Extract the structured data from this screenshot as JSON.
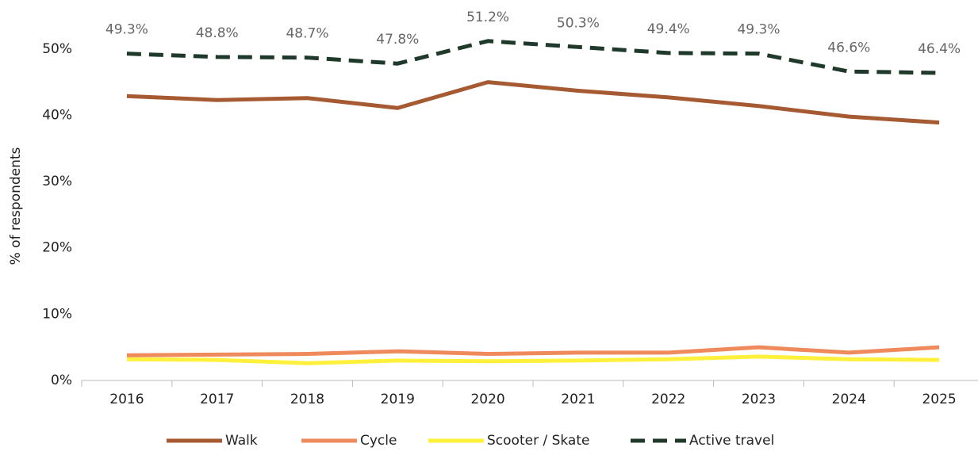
{
  "chart_data": {
    "type": "line",
    "y_label": "% of respondents",
    "categories": [
      "2016",
      "2017",
      "2018",
      "2019",
      "2020",
      "2021",
      "2022",
      "2023",
      "2024",
      "2025"
    ],
    "series": [
      {
        "name": "Walk",
        "color": "#a65a32",
        "values": [
          42.9,
          42.3,
          42.6,
          41.1,
          45.0,
          43.7,
          42.7,
          41.4,
          39.8,
          38.9
        ]
      },
      {
        "name": "Cycle",
        "color": "#ef8a5c",
        "values": [
          3.8,
          3.9,
          4.0,
          4.4,
          4.0,
          4.2,
          4.2,
          5.0,
          4.2,
          5.0
        ]
      },
      {
        "name": "Scooter / Skate",
        "color": "#fff03c",
        "values": [
          3.2,
          3.1,
          2.6,
          3.0,
          2.9,
          3.0,
          3.2,
          3.6,
          3.2,
          3.1
        ]
      },
      {
        "name": "Active travel",
        "color": "#1f3a2a",
        "dashed": true,
        "values": [
          49.3,
          48.8,
          48.7,
          47.8,
          51.2,
          50.3,
          49.4,
          49.3,
          46.6,
          46.4
        ],
        "value_labels": [
          "49.3%",
          "48.8%",
          "48.7%",
          "47.8%",
          "51.2%",
          "50.3%",
          "49.4%",
          "49.3%",
          "46.6%",
          "46.4%"
        ]
      }
    ],
    "ylim": [
      0,
      55
    ],
    "yticks": [
      {
        "value": 0,
        "label": "0%"
      },
      {
        "value": 10,
        "label": "10%"
      },
      {
        "value": 20,
        "label": "20%"
      },
      {
        "value": 30,
        "label": "30%"
      },
      {
        "value": 40,
        "label": "40%"
      },
      {
        "value": 50,
        "label": "50%"
      }
    ],
    "legend": "bottom"
  }
}
